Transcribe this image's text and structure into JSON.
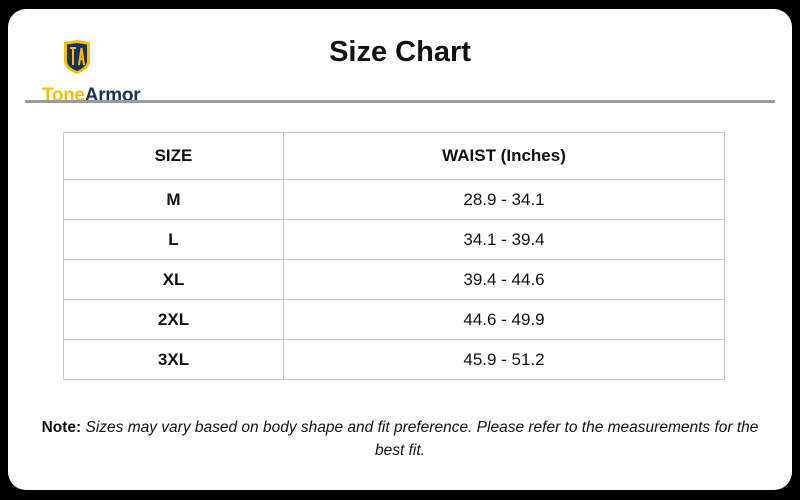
{
  "brand": {
    "part1": "Tone",
    "part2": "Armor",
    "monogram": "TA",
    "colors": {
      "gold": "#f5c000",
      "navy": "#1b3257"
    }
  },
  "title": "Size Chart",
  "table": {
    "headers": [
      "SIZE",
      "WAIST (Inches)"
    ],
    "rows": [
      {
        "size": "M",
        "waist": "28.9 - 34.1"
      },
      {
        "size": "L",
        "waist": "34.1 - 39.4"
      },
      {
        "size": "XL",
        "waist": "39.4 - 44.6"
      },
      {
        "size": "2XL",
        "waist": "44.6 - 49.9"
      },
      {
        "size": "3XL",
        "waist": "45.9 - 51.2"
      }
    ]
  },
  "note": {
    "label": "Note:",
    "text": "Sizes may vary based on body shape and fit preference. Please refer to the measurements for the best fit."
  }
}
